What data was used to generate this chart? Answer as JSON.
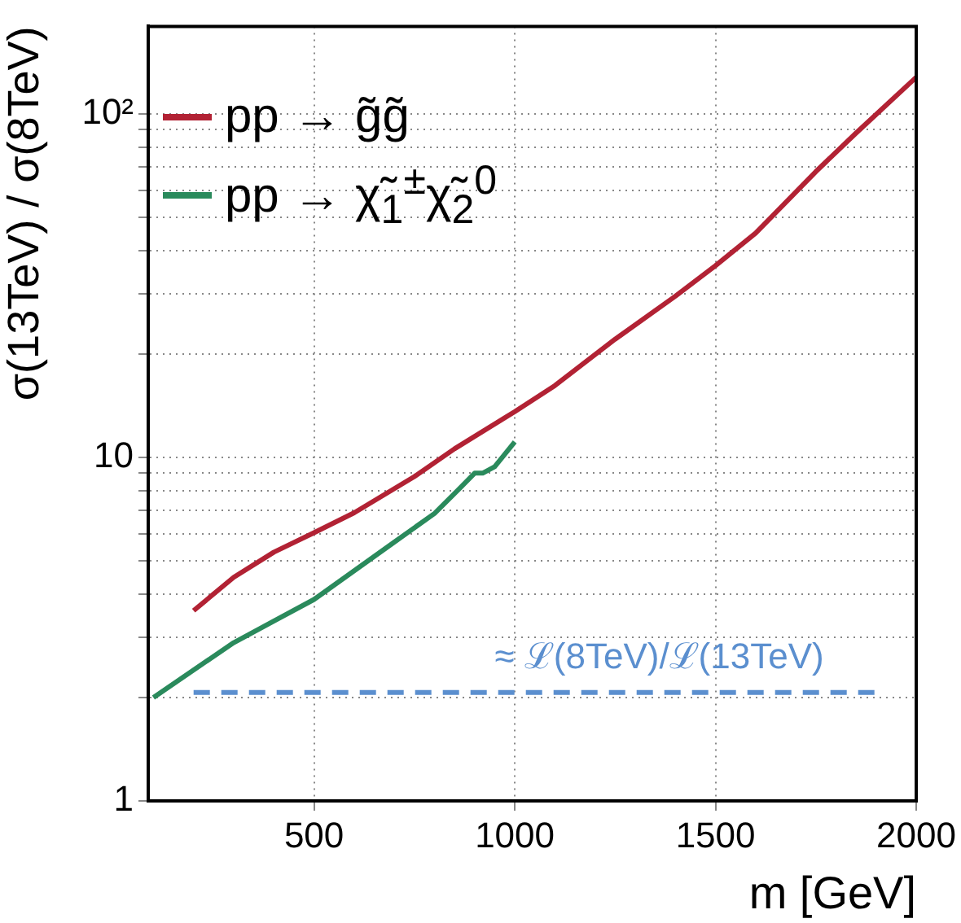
{
  "chart_data": {
    "type": "line",
    "xlabel": "m [GeV]",
    "ylabel": "σ(13TeV) / σ(8TeV)",
    "log": "y",
    "grid": true,
    "legend": "top left",
    "marker": "none",
    "xlim": [
      87,
      2000
    ],
    "xticks": [
      500,
      1000,
      1500,
      2000
    ],
    "ylim": [
      1,
      180
    ],
    "yticks": [
      1,
      {
        "value": 2,
        "label": null
      },
      {
        "value": 3,
        "label": null
      },
      {
        "value": 4,
        "label": null
      },
      {
        "value": 5,
        "label": null
      },
      {
        "value": 6,
        "label": null
      },
      {
        "value": 7,
        "label": null
      },
      {
        "value": 8,
        "label": null
      },
      {
        "value": 9,
        "label": null
      },
      10,
      {
        "value": 20,
        "label": null
      },
      {
        "value": 30,
        "label": null
      },
      {
        "value": 40,
        "label": null
      },
      {
        "value": 50,
        "label": null
      },
      {
        "value": 60,
        "label": null
      },
      {
        "value": 70,
        "label": null
      },
      {
        "value": 80,
        "label": null
      },
      {
        "value": 90,
        "label": null
      },
      {
        "value": 100,
        "label": "10²"
      }
    ],
    "series": [
      {
        "name": "pp → g̃g̃",
        "color": "#b22234",
        "line_style": "solid",
        "x": [
          200,
          300,
          400,
          500,
          600,
          750,
          850,
          1000,
          1100,
          1250,
          1400,
          1500,
          1600,
          1750,
          1850,
          2000
        ],
        "values": [
          3.58,
          4.48,
          5.3,
          6.04,
          6.9,
          8.8,
          10.6,
          13.6,
          16.2,
          22.1,
          29.5,
          36.2,
          45,
          68,
          88,
          128
        ]
      },
      {
        "name": "pp → χ̃$_{1}$$^{±}$χ̃$_{2}$$^{0}$",
        "color": "#2a8a5c",
        "line_style": "solid",
        "x": [
          100,
          300,
          500,
          700,
          800,
          860,
          900,
          920,
          950,
          1000
        ],
        "values": [
          2.0,
          2.89,
          3.86,
          5.67,
          6.87,
          8.07,
          9.0,
          9.0,
          9.4,
          11.1
        ]
      },
      {
        "color": "#5b8fcf",
        "line_style": "dashed",
        "x": [
          200,
          1900
        ],
        "values": [
          2.07,
          2.07
        ]
      }
    ],
    "annotations": [
      {
        "text": "≈ ℒ(8TeV)/ℒ(13TeV)",
        "x": 1360,
        "y": 2.07
      }
    ]
  }
}
